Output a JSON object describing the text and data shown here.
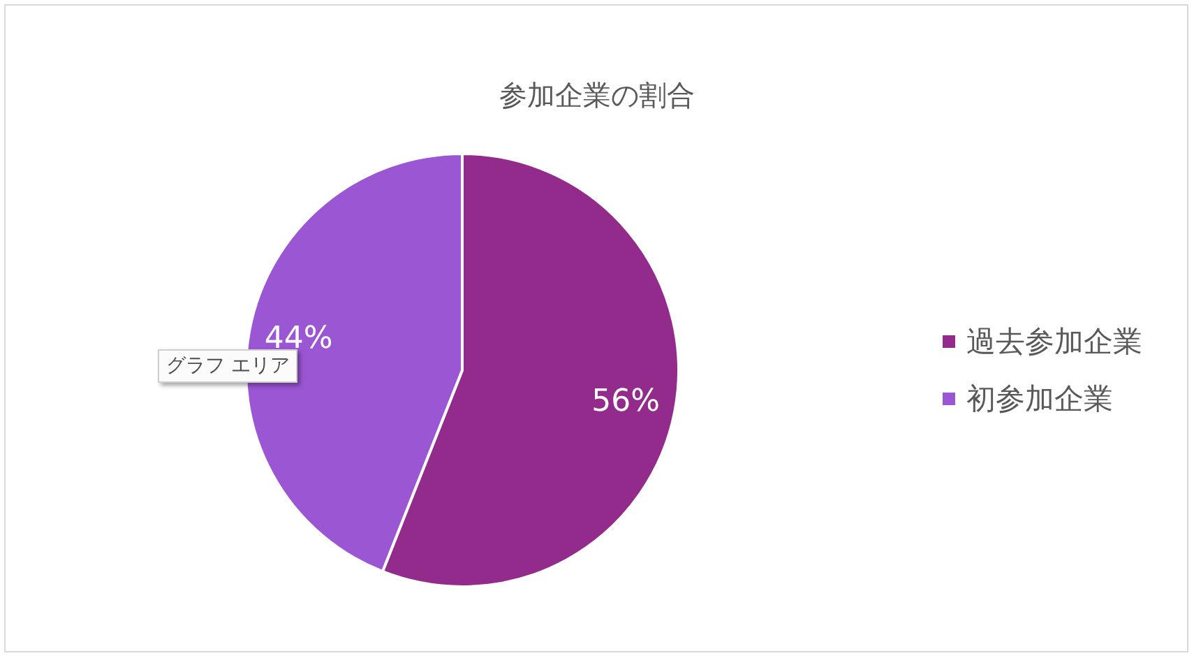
{
  "chart_data": {
    "type": "pie",
    "title": "参加企業の割合",
    "categories": [
      "過去参加企業",
      "初参加企業"
    ],
    "values": [
      56,
      44
    ],
    "colors": [
      "#922b8c",
      "#9b57d3"
    ],
    "value_labels": [
      "56%",
      "44%"
    ],
    "legend": "right",
    "annotations": [
      "グラフ エリア"
    ]
  }
}
